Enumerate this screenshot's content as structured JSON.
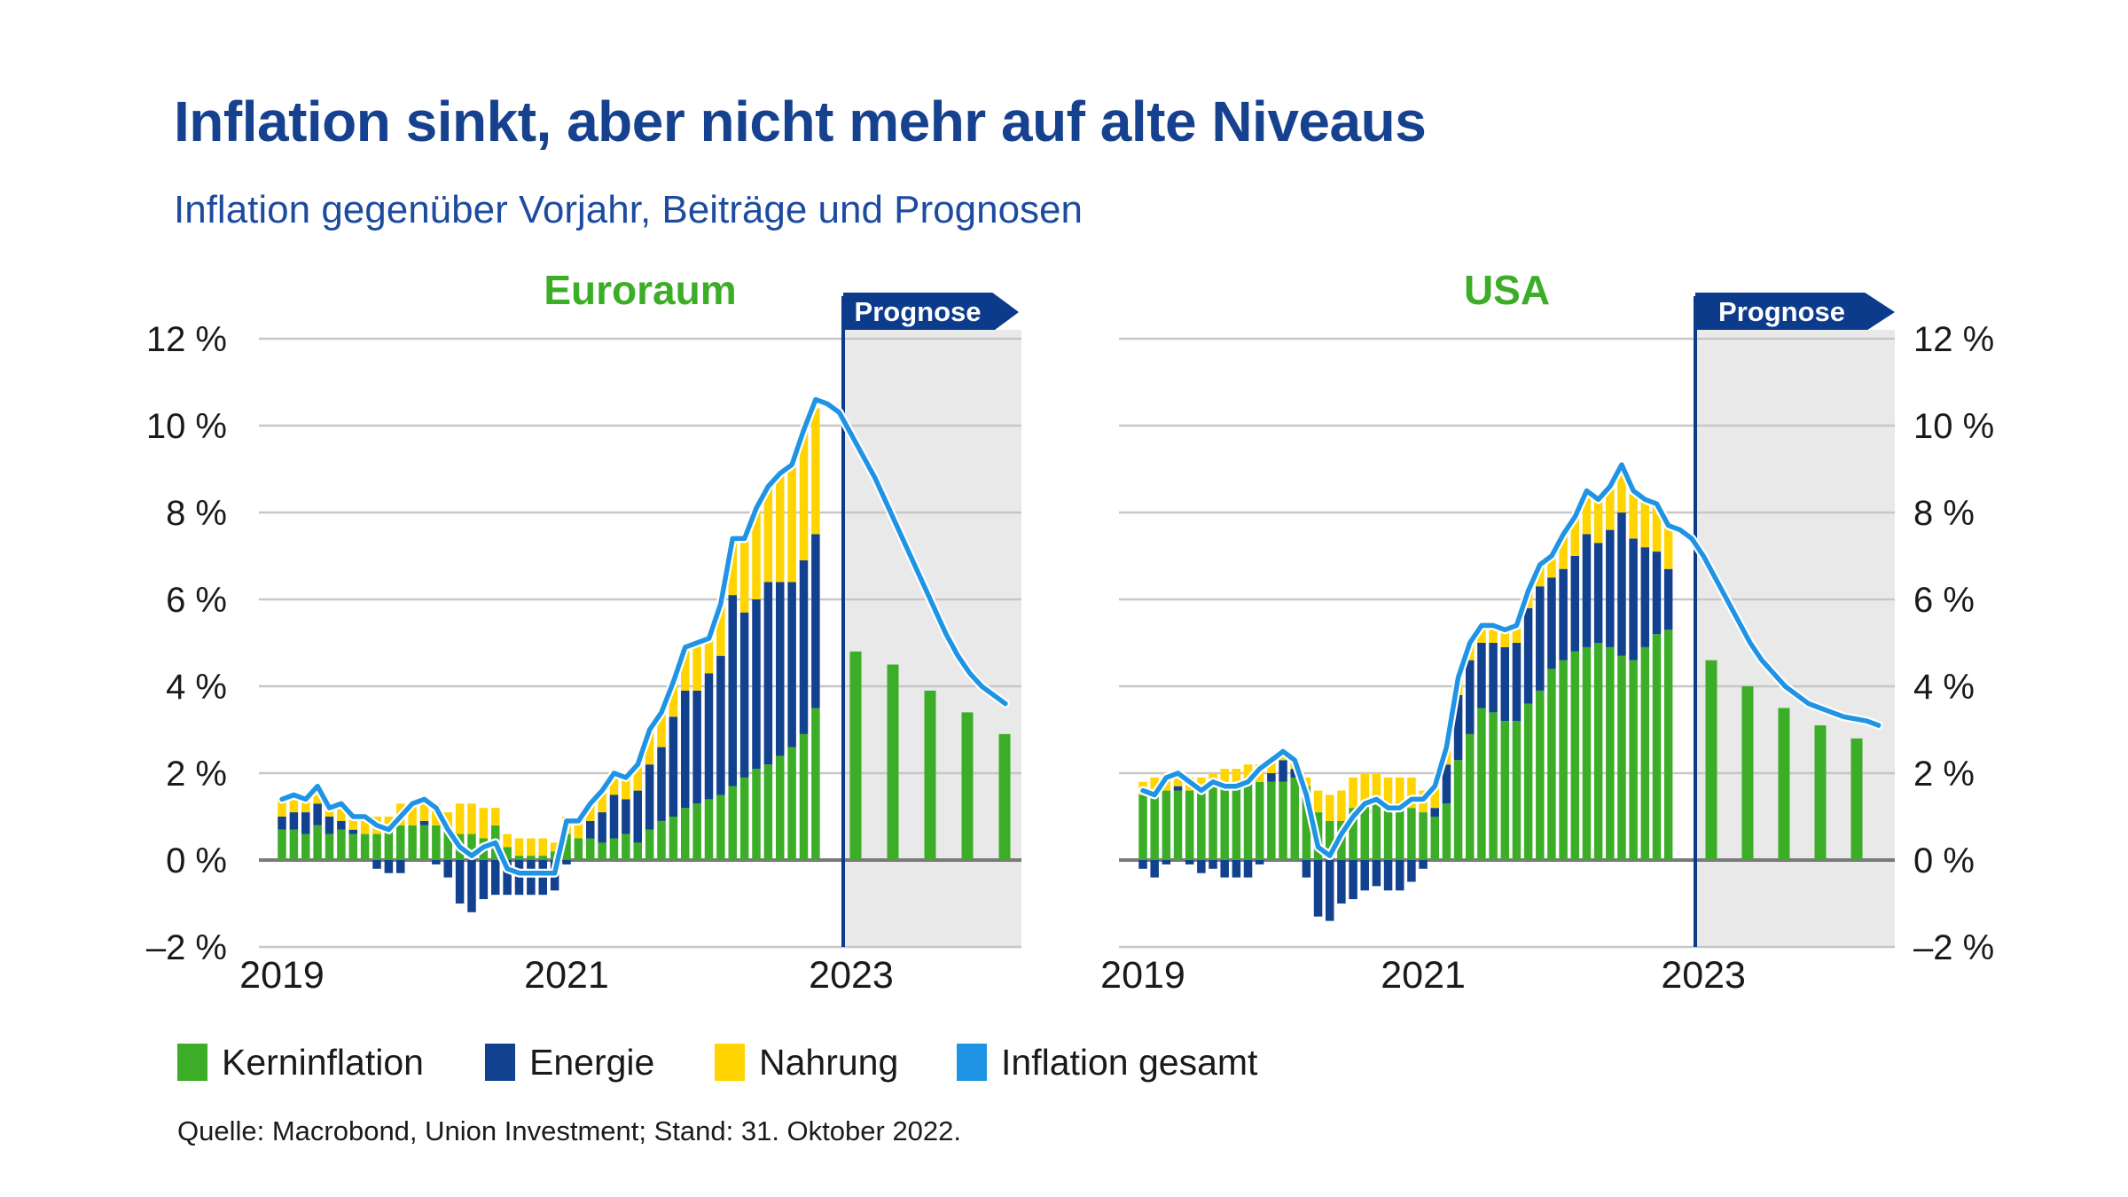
{
  "header": {
    "title": "Inflation sinkt, aber nicht mehr auf alte Niveaus",
    "subtitle": "Inflation gegenüber Vorjahr, Beiträge und Prognosen"
  },
  "prognose_label": "Prognose",
  "source": "Quelle: Macrobond, Union Investment; Stand: 31. Oktober 2022.",
  "legend": [
    {
      "label": "Kerninflation",
      "color": "#3CAD27"
    },
    {
      "label": "Energie",
      "color": "#12418F"
    },
    {
      "label": "Nahrung",
      "color": "#FFD400"
    },
    {
      "label": "Inflation gesamt",
      "color": "#2094E4"
    }
  ],
  "colors": {
    "title_navy": "#16418F",
    "subtitle_blue": "#1D4B9E",
    "green": "#3CAD27",
    "navy": "#12418F",
    "yellow": "#FFD400",
    "line_blue": "#2094E4",
    "grid": "#C7C7C7",
    "zero_line": "#7A7A7A",
    "forecast_bg": "#E9E9E9",
    "banner_navy": "#0C3B8B",
    "axis_text": "#1A1A1A"
  },
  "axes": {
    "y_ticks": [
      {
        "label": "12 %",
        "value": 12
      },
      {
        "label": "10 %",
        "value": 10
      },
      {
        "label": "8 %",
        "value": 8
      },
      {
        "label": "6 %",
        "value": 6
      },
      {
        "label": "4 %",
        "value": 4
      },
      {
        "label": "2 %",
        "value": 2
      },
      {
        "label": "0 %",
        "value": 0
      },
      {
        "label": "–2 %",
        "value": -2
      }
    ],
    "year_labels": [
      "2019",
      "2021",
      "2023"
    ],
    "ylim": [
      -2,
      12
    ]
  },
  "chart_data": [
    {
      "type": "bar",
      "subtype": "stacked-bars-with-line",
      "title": "Euroraum",
      "x_start": "2019-01",
      "x_end_actual": "2022-10",
      "freq": "monthly",
      "ylim": [
        -2,
        12
      ],
      "series": [
        {
          "name": "Kerninflation",
          "type": "bar",
          "values": [
            0.7,
            0.7,
            0.6,
            0.8,
            0.6,
            0.7,
            0.6,
            0.6,
            0.6,
            0.7,
            0.8,
            0.8,
            0.8,
            0.8,
            0.7,
            0.6,
            0.6,
            0.5,
            0.8,
            0.3,
            0.1,
            0.1,
            0.1,
            0.2,
            0.6,
            0.5,
            0.5,
            0.4,
            0.5,
            0.6,
            0.4,
            0.7,
            0.9,
            1.0,
            1.2,
            1.3,
            1.4,
            1.5,
            1.7,
            1.9,
            2.1,
            2.2,
            2.4,
            2.6,
            2.9,
            3.5
          ]
        },
        {
          "name": "Energie",
          "type": "bar",
          "values": [
            0.3,
            0.4,
            0.5,
            0.5,
            0.4,
            0.2,
            0.1,
            0.0,
            -0.2,
            -0.3,
            -0.3,
            0.0,
            0.1,
            -0.1,
            -0.4,
            -1.0,
            -1.2,
            -0.9,
            -0.8,
            -0.8,
            -0.8,
            -0.8,
            -0.8,
            -0.7,
            -0.1,
            0.0,
            0.4,
            0.7,
            1.0,
            0.8,
            1.2,
            1.5,
            1.7,
            2.3,
            2.7,
            2.6,
            2.9,
            3.2,
            4.4,
            3.8,
            3.9,
            4.2,
            4.0,
            3.8,
            4.0,
            4.0
          ]
        },
        {
          "name": "Nahrung",
          "type": "bar",
          "values": [
            0.4,
            0.4,
            0.3,
            0.4,
            0.2,
            0.4,
            0.3,
            0.4,
            0.4,
            0.3,
            0.5,
            0.5,
            0.5,
            0.5,
            0.4,
            0.7,
            0.7,
            0.7,
            0.4,
            0.3,
            0.4,
            0.4,
            0.4,
            0.2,
            0.4,
            0.4,
            0.4,
            0.5,
            0.5,
            0.5,
            0.6,
            0.8,
            0.8,
            0.8,
            1.0,
            1.1,
            0.8,
            1.2,
            1.3,
            1.7,
            2.1,
            2.2,
            2.5,
            2.7,
            3.0,
            2.9
          ]
        },
        {
          "name": "Inflation gesamt",
          "type": "line",
          "values": [
            1.4,
            1.5,
            1.4,
            1.7,
            1.2,
            1.3,
            1.0,
            1.0,
            0.8,
            0.7,
            1.0,
            1.3,
            1.4,
            1.2,
            0.7,
            0.3,
            0.1,
            0.3,
            0.4,
            -0.2,
            -0.3,
            -0.3,
            -0.3,
            -0.3,
            0.9,
            0.9,
            1.3,
            1.6,
            2.0,
            1.9,
            2.2,
            3.0,
            3.4,
            4.1,
            4.9,
            5.0,
            5.1,
            5.9,
            7.4,
            7.4,
            8.1,
            8.6,
            8.9,
            9.1,
            9.9,
            10.6
          ]
        }
      ],
      "forecast": {
        "label": "Prognose",
        "bars_quarterly": [
          4.8,
          4.5,
          3.9,
          3.4,
          2.9
        ],
        "line_monthly": [
          10.5,
          10.3,
          9.8,
          9.3,
          8.8,
          8.2,
          7.6,
          7.0,
          6.4,
          5.8,
          5.2,
          4.7,
          4.3,
          4.0,
          3.8,
          3.6
        ]
      }
    },
    {
      "type": "bar",
      "subtype": "stacked-bars-with-line",
      "title": "USA",
      "x_start": "2019-01",
      "x_end_actual": "2022-10",
      "freq": "monthly",
      "ylim": [
        -2,
        12
      ],
      "series": [
        {
          "name": "Kerninflation",
          "type": "bar",
          "values": [
            1.5,
            1.6,
            1.6,
            1.6,
            1.6,
            1.7,
            1.7,
            1.8,
            1.8,
            1.8,
            1.8,
            1.8,
            1.8,
            1.9,
            1.7,
            1.1,
            0.9,
            0.9,
            1.2,
            1.3,
            1.3,
            1.3,
            1.2,
            1.2,
            1.1,
            1.0,
            1.3,
            2.3,
            2.9,
            3.5,
            3.4,
            3.2,
            3.2,
            3.6,
            3.9,
            4.4,
            4.6,
            4.8,
            4.9,
            5.0,
            4.9,
            4.7,
            4.6,
            4.9,
            5.2,
            5.3
          ]
        },
        {
          "name": "Energie",
          "type": "bar",
          "values": [
            -0.2,
            -0.4,
            -0.1,
            0.1,
            -0.1,
            -0.3,
            -0.2,
            -0.4,
            -0.4,
            -0.4,
            -0.1,
            0.2,
            0.5,
            0.2,
            -0.4,
            -1.3,
            -1.4,
            -1.0,
            -0.9,
            -0.7,
            -0.6,
            -0.7,
            -0.7,
            -0.5,
            -0.2,
            0.2,
            0.9,
            1.5,
            1.7,
            1.5,
            1.6,
            1.7,
            1.8,
            2.2,
            2.4,
            2.1,
            2.1,
            2.2,
            2.6,
            2.3,
            2.7,
            3.3,
            2.8,
            2.3,
            1.9,
            1.4
          ]
        },
        {
          "name": "Nahrung",
          "type": "bar",
          "values": [
            0.3,
            0.3,
            0.4,
            0.3,
            0.3,
            0.2,
            0.3,
            0.3,
            0.3,
            0.4,
            0.4,
            0.3,
            0.2,
            0.2,
            0.2,
            0.5,
            0.6,
            0.7,
            0.7,
            0.7,
            0.7,
            0.6,
            0.7,
            0.7,
            0.5,
            0.5,
            0.4,
            0.4,
            0.4,
            0.4,
            0.4,
            0.4,
            0.4,
            0.4,
            0.5,
            0.5,
            0.8,
            0.9,
            1.0,
            1.0,
            1.0,
            1.1,
            1.1,
            1.1,
            1.1,
            1.0
          ]
        },
        {
          "name": "Inflation gesamt",
          "type": "line",
          "values": [
            1.6,
            1.5,
            1.9,
            2.0,
            1.8,
            1.6,
            1.8,
            1.7,
            1.7,
            1.8,
            2.1,
            2.3,
            2.5,
            2.3,
            1.5,
            0.3,
            0.1,
            0.6,
            1.0,
            1.3,
            1.4,
            1.2,
            1.2,
            1.4,
            1.4,
            1.7,
            2.6,
            4.2,
            5.0,
            5.4,
            5.4,
            5.3,
            5.4,
            6.2,
            6.8,
            7.0,
            7.5,
            7.9,
            8.5,
            8.3,
            8.6,
            9.1,
            8.5,
            8.3,
            8.2,
            7.7
          ]
        }
      ],
      "forecast": {
        "label": "Prognose",
        "bars_quarterly": [
          4.6,
          4.0,
          3.5,
          3.1,
          2.8
        ],
        "line_monthly": [
          7.6,
          7.4,
          7.0,
          6.5,
          6.0,
          5.5,
          5.0,
          4.6,
          4.3,
          4.0,
          3.8,
          3.6,
          3.5,
          3.4,
          3.3,
          3.25,
          3.2,
          3.1
        ]
      }
    }
  ]
}
